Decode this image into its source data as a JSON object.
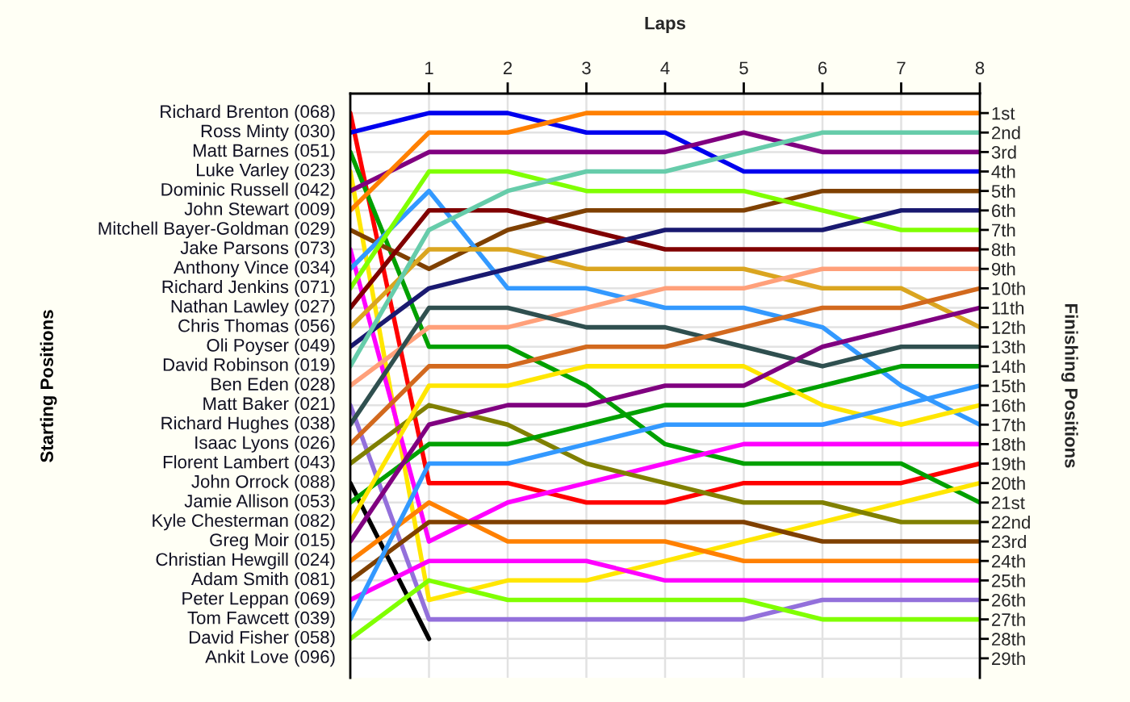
{
  "chart_data": {
    "type": "line",
    "xlabel": "Laps",
    "ylabel": "Finishing Positions",
    "annotations": [
      "Starting Positions",
      "Ankit Love (096)"
    ],
    "x": [
      0,
      1,
      2,
      3,
      4,
      5,
      6,
      7,
      8
    ],
    "xlim": [
      0,
      8
    ],
    "xticks": [
      1,
      2,
      3,
      4,
      5,
      6,
      7,
      8
    ],
    "ylim": [
      30,
      0
    ],
    "yticks": [
      {
        "value": 1,
        "label": "1st"
      },
      {
        "value": 2,
        "label": "2nd"
      },
      {
        "value": 3,
        "label": "3rd"
      },
      {
        "value": 4,
        "label": "4th"
      },
      {
        "value": 5,
        "label": "5th"
      },
      {
        "value": 6,
        "label": "6th"
      },
      {
        "value": 7,
        "label": "7th"
      },
      {
        "value": 8,
        "label": "8th"
      },
      {
        "value": 9,
        "label": "9th"
      },
      {
        "value": 10,
        "label": "10th"
      },
      {
        "value": 11,
        "label": "11th"
      },
      {
        "value": 12,
        "label": "12th"
      },
      {
        "value": 13,
        "label": "13th"
      },
      {
        "value": 14,
        "label": "14th"
      },
      {
        "value": 15,
        "label": "15th"
      },
      {
        "value": 16,
        "label": "16th"
      },
      {
        "value": 17,
        "label": "17th"
      },
      {
        "value": 18,
        "label": "18th"
      },
      {
        "value": 19,
        "label": "19th"
      },
      {
        "value": 20,
        "label": "20th"
      },
      {
        "value": 21,
        "label": "21st"
      },
      {
        "value": 22,
        "label": "22nd"
      },
      {
        "value": 23,
        "label": "23rd"
      },
      {
        "value": 24,
        "label": "24th"
      },
      {
        "value": 25,
        "label": "25th"
      },
      {
        "value": 26,
        "label": "26th"
      },
      {
        "value": 27,
        "label": "27th"
      },
      {
        "value": 28,
        "label": "28th"
      },
      {
        "value": 29,
        "label": "29th"
      }
    ],
    "grid": true,
    "marker": "none",
    "line_style": "solid",
    "series": [
      {
        "name": "Richard Brenton (068)",
        "color": "#ff0000",
        "values": [
          1,
          20,
          20,
          21,
          21,
          20,
          20,
          20,
          19
        ]
      },
      {
        "name": "Ross Minty (030)",
        "color": "#0000ee",
        "values": [
          2,
          1,
          1,
          2,
          2,
          4,
          4,
          4,
          4
        ]
      },
      {
        "name": "Matt Barnes (051)",
        "color": "#00a000",
        "values": [
          3,
          13,
          13,
          15,
          18,
          19,
          19,
          19,
          21
        ]
      },
      {
        "name": "Luke Varley (023)",
        "color": "#ffe600",
        "values": [
          4,
          26,
          25,
          25,
          24,
          23,
          22,
          21,
          20
        ]
      },
      {
        "name": "Dominic Russell (042)",
        "color": "#800080",
        "values": [
          5,
          3,
          3,
          3,
          3,
          2,
          3,
          3,
          3
        ]
      },
      {
        "name": "John Stewart (009)",
        "color": "#ff8000",
        "values": [
          6,
          2,
          2,
          1,
          1,
          1,
          1,
          1,
          1
        ]
      },
      {
        "name": "Mitchell Bayer-Goldman (029)",
        "color": "#7f4000",
        "values": [
          7,
          9,
          7,
          6,
          6,
          6,
          5,
          5,
          5
        ]
      },
      {
        "name": "Jake Parsons (073)",
        "color": "#ff00ff",
        "values": [
          8,
          23,
          21,
          20,
          19,
          18,
          18,
          18,
          18
        ]
      },
      {
        "name": "Anthony Vince (034)",
        "color": "#3399ff",
        "values": [
          9,
          5,
          10,
          10,
          11,
          11,
          12,
          15,
          17
        ]
      },
      {
        "name": "Richard Jenkins (071)",
        "color": "#80ff00",
        "values": [
          10,
          4,
          4,
          5,
          5,
          5,
          6,
          7,
          7
        ]
      },
      {
        "name": "Nathan Lawley (027)",
        "color": "#800000",
        "values": [
          11,
          6,
          6,
          7,
          8,
          8,
          8,
          8,
          8
        ]
      },
      {
        "name": "Chris Thomas (056)",
        "color": "#daa520",
        "values": [
          12,
          8,
          8,
          9,
          9,
          9,
          10,
          10,
          12
        ]
      },
      {
        "name": "Oli Poyser (049)",
        "color": "#191970",
        "values": [
          13,
          10,
          9,
          8,
          7,
          7,
          7,
          6,
          6
        ]
      },
      {
        "name": "David Robinson (019)",
        "color": "#66ccaa",
        "values": [
          14,
          7,
          5,
          4,
          4,
          3,
          2,
          2,
          2
        ]
      },
      {
        "name": "Ben Eden (028)",
        "color": "#ffa07a",
        "values": [
          15,
          12,
          12,
          11,
          10,
          10,
          9,
          9,
          9
        ]
      },
      {
        "name": "Matt Baker (021)",
        "color": "#9370db",
        "values": [
          16,
          27,
          27,
          27,
          27,
          27,
          26,
          26,
          26
        ]
      },
      {
        "name": "Richard Hughes (038)",
        "color": "#2f4f4f",
        "values": [
          17,
          11,
          11,
          12,
          12,
          13,
          14,
          13,
          13
        ]
      },
      {
        "name": "Isaac Lyons (026)",
        "color": "#d2691e",
        "values": [
          18,
          14,
          14,
          13,
          13,
          12,
          11,
          11,
          10
        ]
      },
      {
        "name": "Florent Lambert (043)",
        "color": "#808000",
        "values": [
          19,
          16,
          17,
          19,
          20,
          21,
          21,
          22,
          22
        ]
      },
      {
        "name": "John Orrock (088)",
        "color": "#000000",
        "values": [
          20,
          28,
          null,
          null,
          null,
          null,
          null,
          null,
          null
        ]
      },
      {
        "name": "Jamie Allison (053)",
        "color": "#00a000",
        "values": [
          21,
          18,
          18,
          17,
          16,
          16,
          15,
          14,
          14
        ]
      },
      {
        "name": "Kyle Chesterman (082)",
        "color": "#ffe600",
        "values": [
          22,
          15,
          15,
          14,
          14,
          14,
          16,
          17,
          16
        ]
      },
      {
        "name": "Greg Moir (015)",
        "color": "#800080",
        "values": [
          23,
          17,
          16,
          16,
          15,
          15,
          13,
          12,
          11
        ]
      },
      {
        "name": "Christian Hewgill (024)",
        "color": "#ff8000",
        "values": [
          24,
          21,
          23,
          23,
          23,
          24,
          24,
          24,
          24
        ]
      },
      {
        "name": "Adam Smith (081)",
        "color": "#7f4000",
        "values": [
          25,
          22,
          22,
          22,
          22,
          22,
          23,
          23,
          23
        ]
      },
      {
        "name": "Peter Leppan (069)",
        "color": "#ff00ff",
        "values": [
          26,
          24,
          24,
          24,
          25,
          25,
          25,
          25,
          25
        ]
      },
      {
        "name": "Tom Fawcett (039)",
        "color": "#3399ff",
        "values": [
          27,
          19,
          19,
          18,
          17,
          17,
          17,
          16,
          15
        ]
      },
      {
        "name": "David Fisher (058)",
        "color": "#80ff00",
        "values": [
          28,
          25,
          26,
          26,
          26,
          26,
          27,
          27,
          27
        ]
      }
    ]
  }
}
